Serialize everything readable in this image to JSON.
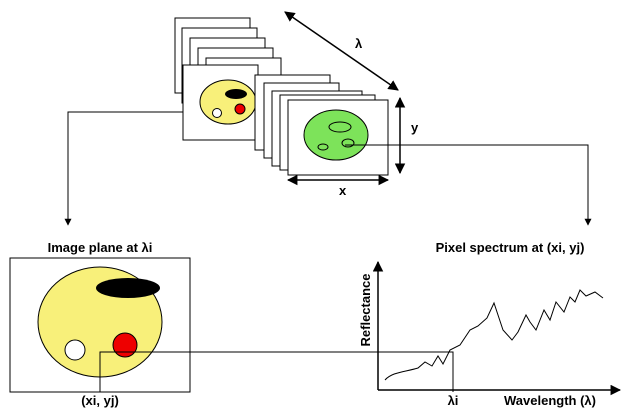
{
  "cube": {
    "lambda_label": "λ",
    "y_label": "y",
    "x_label": "x"
  },
  "image_plane": {
    "title": "Image plane at λi",
    "pixel_label": "(xi, yj)"
  },
  "spectrum": {
    "title": "Pixel spectrum at (xi, yj)",
    "y_axis_label": "Reflectance",
    "x_axis_label": "Wavelength (λ)",
    "marker_label": "λi"
  }
}
